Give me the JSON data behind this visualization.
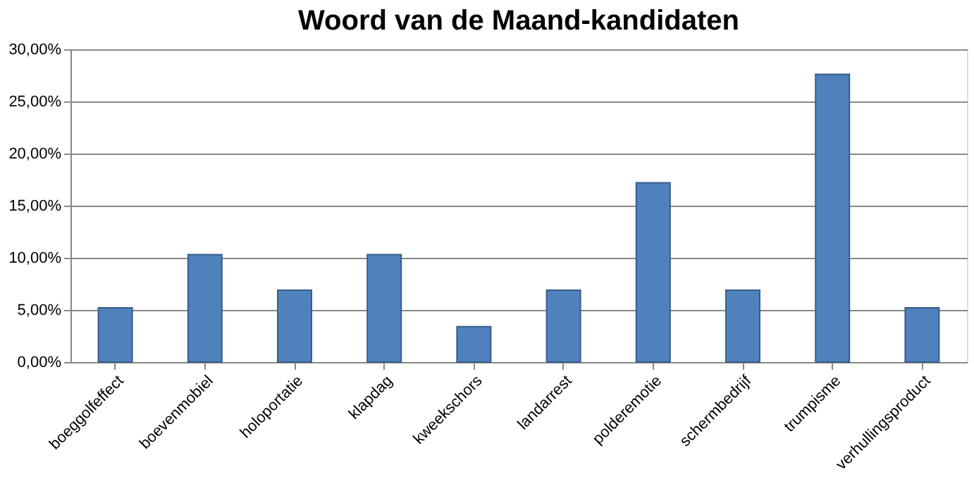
{
  "chart_data": {
    "type": "bar",
    "title": "Woord van de Maand-kandidaten",
    "categories": [
      "boeggolfeffect",
      "boevenmobiel",
      "holoportatie",
      "klapdag",
      "kweekschors",
      "landarrest",
      "polderemotie",
      "schermbedrijf",
      "trumpisme",
      "verhullingsproduct"
    ],
    "values": [
      5.2,
      10.3,
      6.9,
      10.3,
      3.4,
      6.9,
      17.2,
      6.9,
      27.6,
      5.2
    ],
    "color": "#4f81bd",
    "ylim": [
      0,
      30
    ],
    "yticks": [
      {
        "value": 0,
        "label": "0,00%"
      },
      {
        "value": 5,
        "label": "5,00%"
      },
      {
        "value": 10,
        "label": "10,00%"
      },
      {
        "value": 15,
        "label": "15,00%"
      },
      {
        "value": 20,
        "label": "20,00%"
      },
      {
        "value": 25,
        "label": "25,00%"
      },
      {
        "value": 30,
        "label": "30,00%"
      }
    ],
    "grid": "y"
  }
}
